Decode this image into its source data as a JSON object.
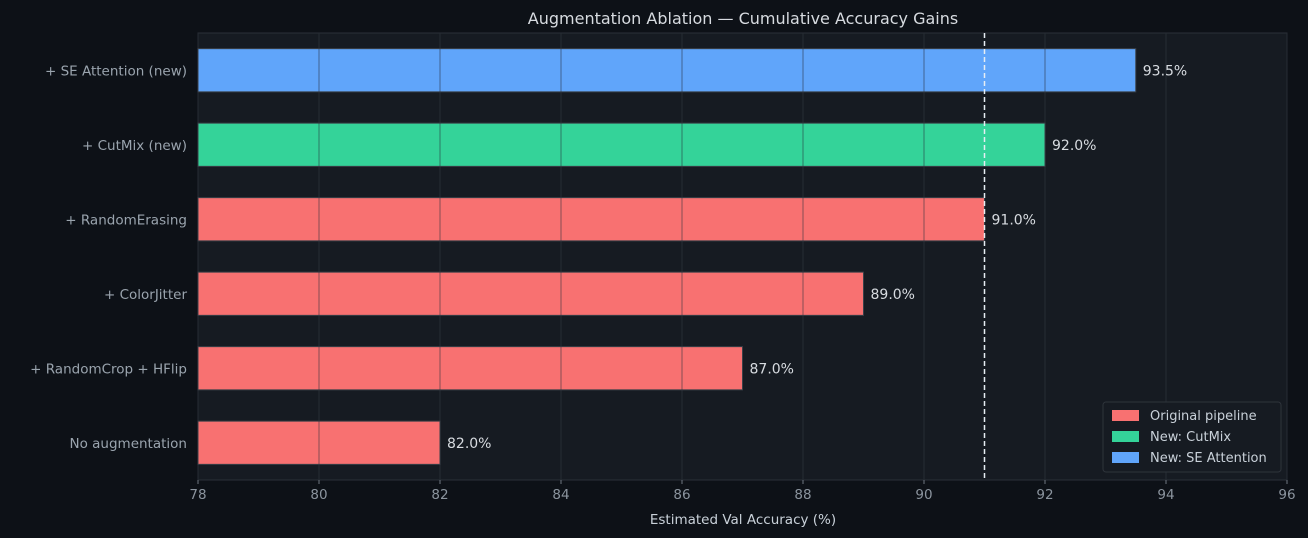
{
  "chart_data": {
    "type": "bar",
    "orientation": "horizontal",
    "title": "Augmentation Ablation — Cumulative Accuracy Gains",
    "xlabel": "Estimated Val Accuracy (%)",
    "ylabel": "",
    "xlim": [
      78,
      96
    ],
    "xticks": [
      "78",
      "80",
      "82",
      "84",
      "86",
      "88",
      "90",
      "92",
      "94",
      "96"
    ],
    "grid": true,
    "reference_line": {
      "x": 91,
      "style": "dashed"
    },
    "categories": [
      "No augmentation",
      "+ RandomCrop + HFlip",
      "+ ColorJitter",
      "+ RandomErasing",
      "+ CutMix (new)",
      "+ SE Attention (new)"
    ],
    "values": [
      82.0,
      87.0,
      89.0,
      91.0,
      92.0,
      93.5
    ],
    "value_labels": [
      "82.0%",
      "87.0%",
      "89.0%",
      "91.0%",
      "92.0%",
      "93.5%"
    ],
    "groups": [
      "original",
      "original",
      "original",
      "original",
      "cutmix",
      "se"
    ],
    "legend": {
      "placement": "bottom-right",
      "entries": [
        {
          "key": "original",
          "label": "Original pipeline",
          "color": "#f87171"
        },
        {
          "key": "cutmix",
          "label": "New: CutMix",
          "color": "#34d399"
        },
        {
          "key": "se",
          "label": "New: SE Attention",
          "color": "#60a5fa"
        }
      ]
    },
    "colors": {
      "background": "#0d1117",
      "plot_background": "#161b22",
      "text": "#c9d1d9",
      "reference_line": "#e6edf3"
    }
  }
}
